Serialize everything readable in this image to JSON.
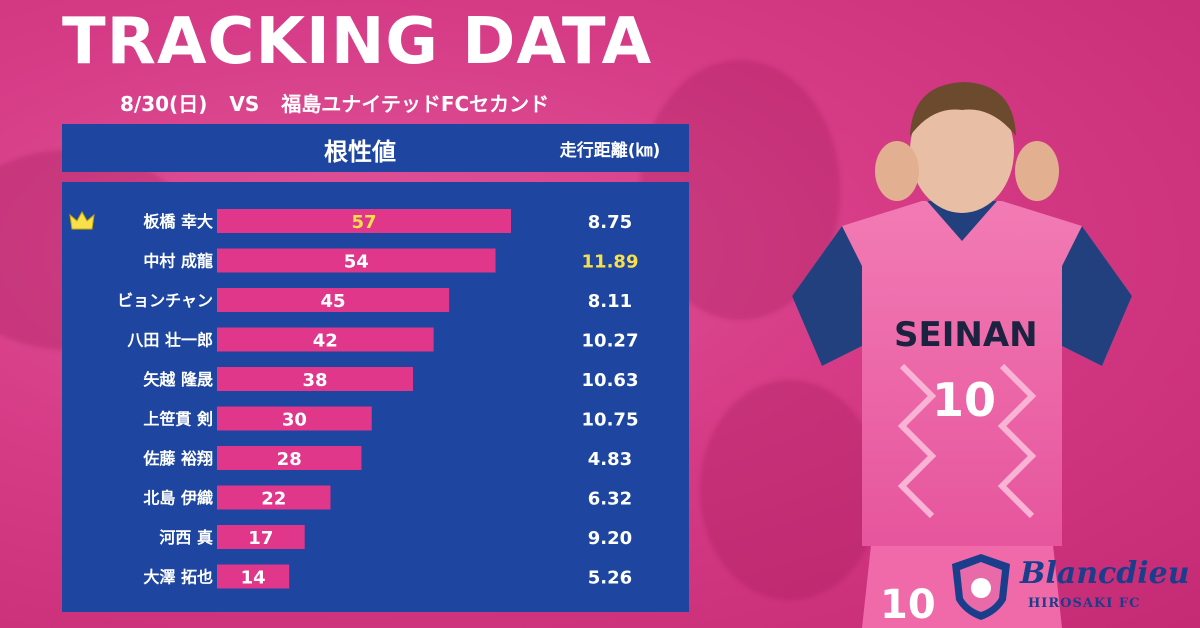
{
  "header": {
    "title": "TRACKING DATA",
    "date": "8/30(日)",
    "vs": "VS",
    "opponent": "福島ユナイテッドFCセカンド"
  },
  "table": {
    "metric_label": "根性値",
    "distance_label": "走行距離(㎞)"
  },
  "brand": {
    "logo_name": "Blancdieu",
    "logo_sub": "HIROSAKI FC",
    "player_number": "10",
    "sponsor": "SEINAN"
  },
  "colors": {
    "background": "#d63b86",
    "panel": "#1e46a0",
    "bar": "#e0378a",
    "highlight": "#f7e04a",
    "text": "#ffffff"
  },
  "chart_data": {
    "type": "bar",
    "orientation": "horizontal",
    "categories": [
      "板橋 幸大",
      "中村 成龍",
      "ビョンチャン",
      "八田 壮一郎",
      "矢越 隆晟",
      "上笹貫 剣",
      "佐藤 裕翔",
      "北島 伊織",
      "河西 真",
      "大澤 拓也"
    ],
    "series": [
      {
        "name": "根性値",
        "values": [
          57,
          54,
          45,
          42,
          38,
          30,
          28,
          22,
          17,
          14
        ]
      },
      {
        "name": "走行距離(㎞)",
        "values": [
          8.75,
          11.89,
          8.11,
          10.27,
          10.63,
          10.75,
          4.83,
          6.32,
          9.2,
          5.26
        ]
      }
    ],
    "distance_labels": [
      "8.75",
      "11.89",
      "8.11",
      "10.27",
      "10.63",
      "10.75",
      "4.83",
      "6.32",
      "9.20",
      "5.26"
    ],
    "crown_index": 0,
    "highlight_value_index": 0,
    "highlight_distance_index": 1,
    "xlim": [
      0,
      57
    ]
  }
}
